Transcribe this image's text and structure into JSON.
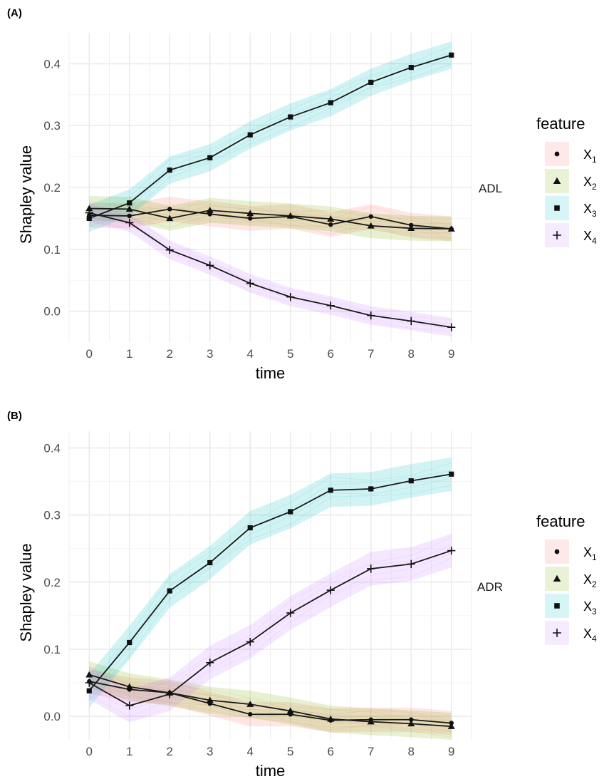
{
  "panels": [
    {
      "tag": "(A)",
      "facet": "ADL"
    },
    {
      "tag": "(B)",
      "facet": "ADR"
    }
  ],
  "chart_data": [
    {
      "type": "line",
      "xlabel": "time",
      "ylabel": "Shapley value",
      "x": [
        0,
        1,
        2,
        3,
        4,
        5,
        6,
        7,
        8,
        9
      ],
      "ylim": [
        -0.05,
        0.45
      ],
      "yticks": [
        0.0,
        0.1,
        0.2,
        0.3,
        0.4
      ],
      "ytick_labels": [
        "0.0",
        "0.1",
        "0.2",
        "0.3",
        "0.4"
      ],
      "grid": true,
      "legend_position": "right",
      "legend_title": "feature",
      "facet_label": "ADL",
      "series": [
        {
          "name": "X",
          "sub": "1",
          "marker": "circle",
          "color": "#F8766D",
          "values": [
            0.155,
            0.154,
            0.165,
            0.157,
            0.15,
            0.153,
            0.14,
            0.153,
            0.139,
            0.133
          ],
          "band": 0.02
        },
        {
          "name": "X",
          "sub": "2",
          "marker": "triangle",
          "color": "#7CAE00",
          "values": [
            0.166,
            0.165,
            0.15,
            0.163,
            0.158,
            0.154,
            0.149,
            0.138,
            0.134,
            0.133
          ],
          "band": 0.02
        },
        {
          "name": "X",
          "sub": "3",
          "marker": "square",
          "color": "#00BFC4",
          "values": [
            0.15,
            0.175,
            0.228,
            0.248,
            0.285,
            0.314,
            0.337,
            0.37,
            0.394,
            0.414
          ],
          "band": 0.022
        },
        {
          "name": "X",
          "sub": "4",
          "marker": "plus",
          "color": "#C77CFF",
          "values": [
            0.159,
            0.143,
            0.099,
            0.074,
            0.045,
            0.023,
            0.009,
            -0.007,
            -0.016,
            -0.026
          ],
          "band": 0.015
        }
      ]
    },
    {
      "type": "line",
      "xlabel": "time",
      "ylabel": "Shapley value",
      "x": [
        0,
        1,
        2,
        3,
        4,
        5,
        6,
        7,
        8,
        9
      ],
      "ylim": [
        -0.035,
        0.425
      ],
      "yticks": [
        0.0,
        0.1,
        0.2,
        0.3,
        0.4
      ],
      "ytick_labels": [
        "0.0",
        "0.1",
        "0.2",
        "0.3",
        "0.4"
      ],
      "grid": true,
      "legend_position": "right",
      "legend_title": "feature",
      "facet_label": "ADR",
      "series": [
        {
          "name": "X",
          "sub": "1",
          "marker": "circle",
          "color": "#F8766D",
          "values": [
            0.052,
            0.04,
            0.035,
            0.019,
            0.003,
            0.003,
            -0.006,
            -0.005,
            -0.005,
            -0.01
          ],
          "band": 0.018
        },
        {
          "name": "X",
          "sub": "2",
          "marker": "triangle",
          "color": "#7CAE00",
          "values": [
            0.062,
            0.044,
            0.035,
            0.024,
            0.018,
            0.008,
            -0.004,
            -0.008,
            -0.011,
            -0.015
          ],
          "band": 0.02
        },
        {
          "name": "X",
          "sub": "3",
          "marker": "square",
          "color": "#00BFC4",
          "values": [
            0.038,
            0.11,
            0.187,
            0.229,
            0.281,
            0.305,
            0.337,
            0.339,
            0.351,
            0.361
          ],
          "band": 0.025
        },
        {
          "name": "X",
          "sub": "4",
          "marker": "plus",
          "color": "#C77CFF",
          "values": [
            0.05,
            0.016,
            0.033,
            0.08,
            0.111,
            0.154,
            0.188,
            0.22,
            0.227,
            0.247
          ],
          "band": 0.025
        }
      ]
    }
  ]
}
